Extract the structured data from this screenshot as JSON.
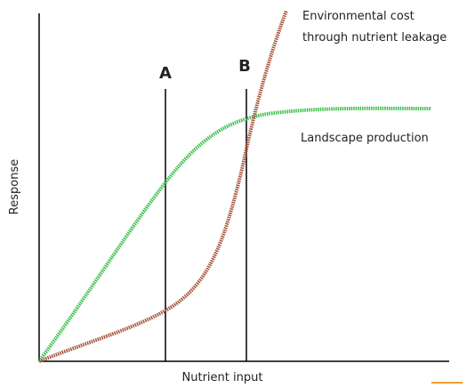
{
  "curves": {
    "cost": {
      "label": [
        "Environmental cost",
        "through nutrient leakage"
      ]
    },
    "production": {
      "label": "Landscape production"
    }
  },
  "axes": {
    "y_label": "Response",
    "x_label": "Nutrient input"
  },
  "markers": {
    "a": "A",
    "b": "B"
  }
}
